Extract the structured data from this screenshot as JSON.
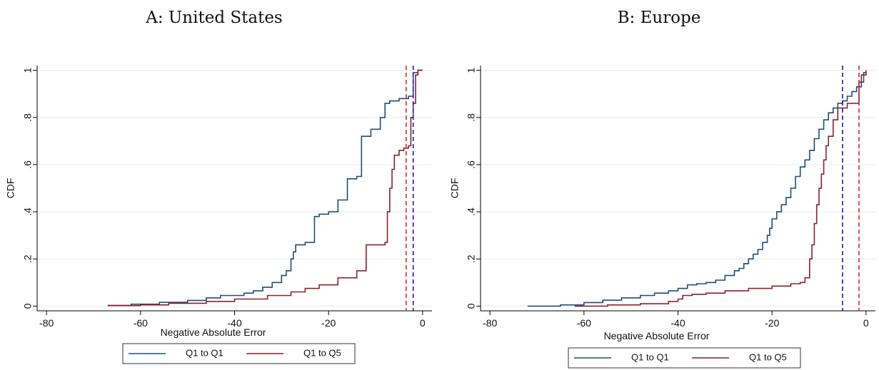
{
  "chart_data": [
    {
      "type": "line",
      "title": "A: United States",
      "xlabel": "Negative Absolute Error",
      "ylabel": "CDF",
      "xlim": [
        -82,
        2
      ],
      "ylim": [
        -0.02,
        1.02
      ],
      "xticks": [
        -80,
        -60,
        -40,
        -20,
        0
      ],
      "xtick_labels": [
        "-80",
        "-60",
        "-40",
        "-20",
        "0"
      ],
      "yticks": [
        0,
        0.2,
        0.4,
        0.6,
        0.8,
        1
      ],
      "ytick_labels": [
        "0",
        ".2",
        ".4",
        ".6",
        ".8",
        "1"
      ],
      "grid": true,
      "legend_position": "bottom",
      "series": [
        {
          "name": "Q1 to Q1",
          "color": "#1f4e79",
          "style": "step",
          "points": [
            [
              -67,
              0.003
            ],
            [
              -62,
              0.008
            ],
            [
              -56,
              0.016
            ],
            [
              -50,
              0.024
            ],
            [
              -46,
              0.035
            ],
            [
              -43,
              0.045
            ],
            [
              -38,
              0.055
            ],
            [
              -36,
              0.065
            ],
            [
              -34,
              0.08
            ],
            [
              -32,
              0.1
            ],
            [
              -30,
              0.13
            ],
            [
              -29,
              0.15
            ],
            [
              -28,
              0.2
            ],
            [
              -27.5,
              0.23
            ],
            [
              -27,
              0.26
            ],
            [
              -25,
              0.27
            ],
            [
              -23,
              0.38
            ],
            [
              -22,
              0.39
            ],
            [
              -20,
              0.4
            ],
            [
              -18,
              0.45
            ],
            [
              -16,
              0.54
            ],
            [
              -14,
              0.55
            ],
            [
              -13,
              0.72
            ],
            [
              -11,
              0.75
            ],
            [
              -9,
              0.8
            ],
            [
              -8,
              0.86
            ],
            [
              -7,
              0.87
            ],
            [
              -5,
              0.88
            ],
            [
              -3,
              0.89
            ],
            [
              -2,
              0.99
            ],
            [
              -1,
              1.0
            ],
            [
              0,
              1.0
            ]
          ]
        },
        {
          "name": "Q1 to Q5",
          "color": "#8b2231",
          "style": "step",
          "points": [
            [
              -67,
              0.002
            ],
            [
              -60,
              0.005
            ],
            [
              -54,
              0.012
            ],
            [
              -46,
              0.02
            ],
            [
              -40,
              0.03
            ],
            [
              -33,
              0.045
            ],
            [
              -28,
              0.06
            ],
            [
              -25,
              0.075
            ],
            [
              -22,
              0.09
            ],
            [
              -18,
              0.12
            ],
            [
              -14,
              0.15
            ],
            [
              -12,
              0.26
            ],
            [
              -8,
              0.27
            ],
            [
              -7.5,
              0.4
            ],
            [
              -7,
              0.5
            ],
            [
              -6.5,
              0.58
            ],
            [
              -6,
              0.64
            ],
            [
              -5,
              0.66
            ],
            [
              -4,
              0.67
            ],
            [
              -3,
              0.68
            ],
            [
              -2.5,
              0.8
            ],
            [
              -2,
              0.86
            ],
            [
              -1.5,
              0.98
            ],
            [
              -1,
              1.0
            ],
            [
              0,
              1.0
            ]
          ]
        }
      ],
      "vlines": [
        {
          "x": -3.5,
          "color": "#e8222e"
        },
        {
          "x": -2.0,
          "color": "#1a1ab0"
        }
      ]
    },
    {
      "type": "line",
      "title": "B: Europe",
      "xlabel": "Negative Absolute Error",
      "ylabel": "CDF",
      "xlim": [
        -82,
        2
      ],
      "ylim": [
        -0.02,
        1.02
      ],
      "xticks": [
        -80,
        -60,
        -40,
        -20,
        0
      ],
      "xtick_labels": [
        "-80",
        "-60",
        "-40",
        "-20",
        "0"
      ],
      "yticks": [
        0,
        0.2,
        0.4,
        0.6,
        0.8,
        1
      ],
      "ytick_labels": [
        "0",
        ".2",
        ".4",
        ".6",
        ".8",
        "1"
      ],
      "grid": true,
      "legend_position": "bottom",
      "series": [
        {
          "name": "Q1 to Q1",
          "color": "#1f4e79",
          "style": "step",
          "points": [
            [
              -72,
              0.0
            ],
            [
              -65,
              0.005
            ],
            [
              -60,
              0.015
            ],
            [
              -56,
              0.025
            ],
            [
              -52,
              0.035
            ],
            [
              -48,
              0.045
            ],
            [
              -45,
              0.055
            ],
            [
              -42,
              0.065
            ],
            [
              -40,
              0.075
            ],
            [
              -38,
              0.09
            ],
            [
              -36,
              0.095
            ],
            [
              -34,
              0.1
            ],
            [
              -32,
              0.11
            ],
            [
              -30,
              0.13
            ],
            [
              -28,
              0.15
            ],
            [
              -27,
              0.16
            ],
            [
              -26,
              0.18
            ],
            [
              -25,
              0.2
            ],
            [
              -24,
              0.22
            ],
            [
              -23,
              0.24
            ],
            [
              -22,
              0.27
            ],
            [
              -21,
              0.3
            ],
            [
              -20.5,
              0.33
            ],
            [
              -20,
              0.37
            ],
            [
              -19,
              0.4
            ],
            [
              -18,
              0.43
            ],
            [
              -17,
              0.46
            ],
            [
              -16,
              0.5
            ],
            [
              -15,
              0.55
            ],
            [
              -14,
              0.59
            ],
            [
              -13,
              0.62
            ],
            [
              -12,
              0.66
            ],
            [
              -11,
              0.71
            ],
            [
              -10,
              0.75
            ],
            [
              -9,
              0.79
            ],
            [
              -8,
              0.82
            ],
            [
              -7,
              0.84
            ],
            [
              -6,
              0.86
            ],
            [
              -5,
              0.87
            ],
            [
              -4,
              0.89
            ],
            [
              -3,
              0.91
            ],
            [
              -2,
              0.93
            ],
            [
              -1,
              0.95
            ],
            [
              -0.5,
              0.99
            ],
            [
              0,
              1.0
            ]
          ]
        },
        {
          "name": "Q1 to Q5",
          "color": "#8b2231",
          "style": "step",
          "points": [
            [
              -62,
              0.0
            ],
            [
              -55,
              0.005
            ],
            [
              -48,
              0.01
            ],
            [
              -42,
              0.02
            ],
            [
              -40,
              0.03
            ],
            [
              -39,
              0.045
            ],
            [
              -37,
              0.05
            ],
            [
              -34,
              0.055
            ],
            [
              -30,
              0.065
            ],
            [
              -25,
              0.075
            ],
            [
              -20,
              0.085
            ],
            [
              -16,
              0.095
            ],
            [
              -14,
              0.1
            ],
            [
              -13,
              0.12
            ],
            [
              -12,
              0.2
            ],
            [
              -11.5,
              0.26
            ],
            [
              -11,
              0.35
            ],
            [
              -10.5,
              0.43
            ],
            [
              -10,
              0.5
            ],
            [
              -9.5,
              0.56
            ],
            [
              -9,
              0.62
            ],
            [
              -8.5,
              0.68
            ],
            [
              -8,
              0.72
            ],
            [
              -7,
              0.79
            ],
            [
              -6,
              0.84
            ],
            [
              -4,
              0.86
            ],
            [
              -2,
              0.86
            ],
            [
              -1.5,
              0.95
            ],
            [
              -1,
              0.98
            ],
            [
              0,
              1.0
            ]
          ]
        }
      ],
      "vlines": [
        {
          "x": -5.0,
          "color": "#1a1ab0"
        },
        {
          "x": -1.5,
          "color": "#e8222e"
        }
      ]
    }
  ]
}
